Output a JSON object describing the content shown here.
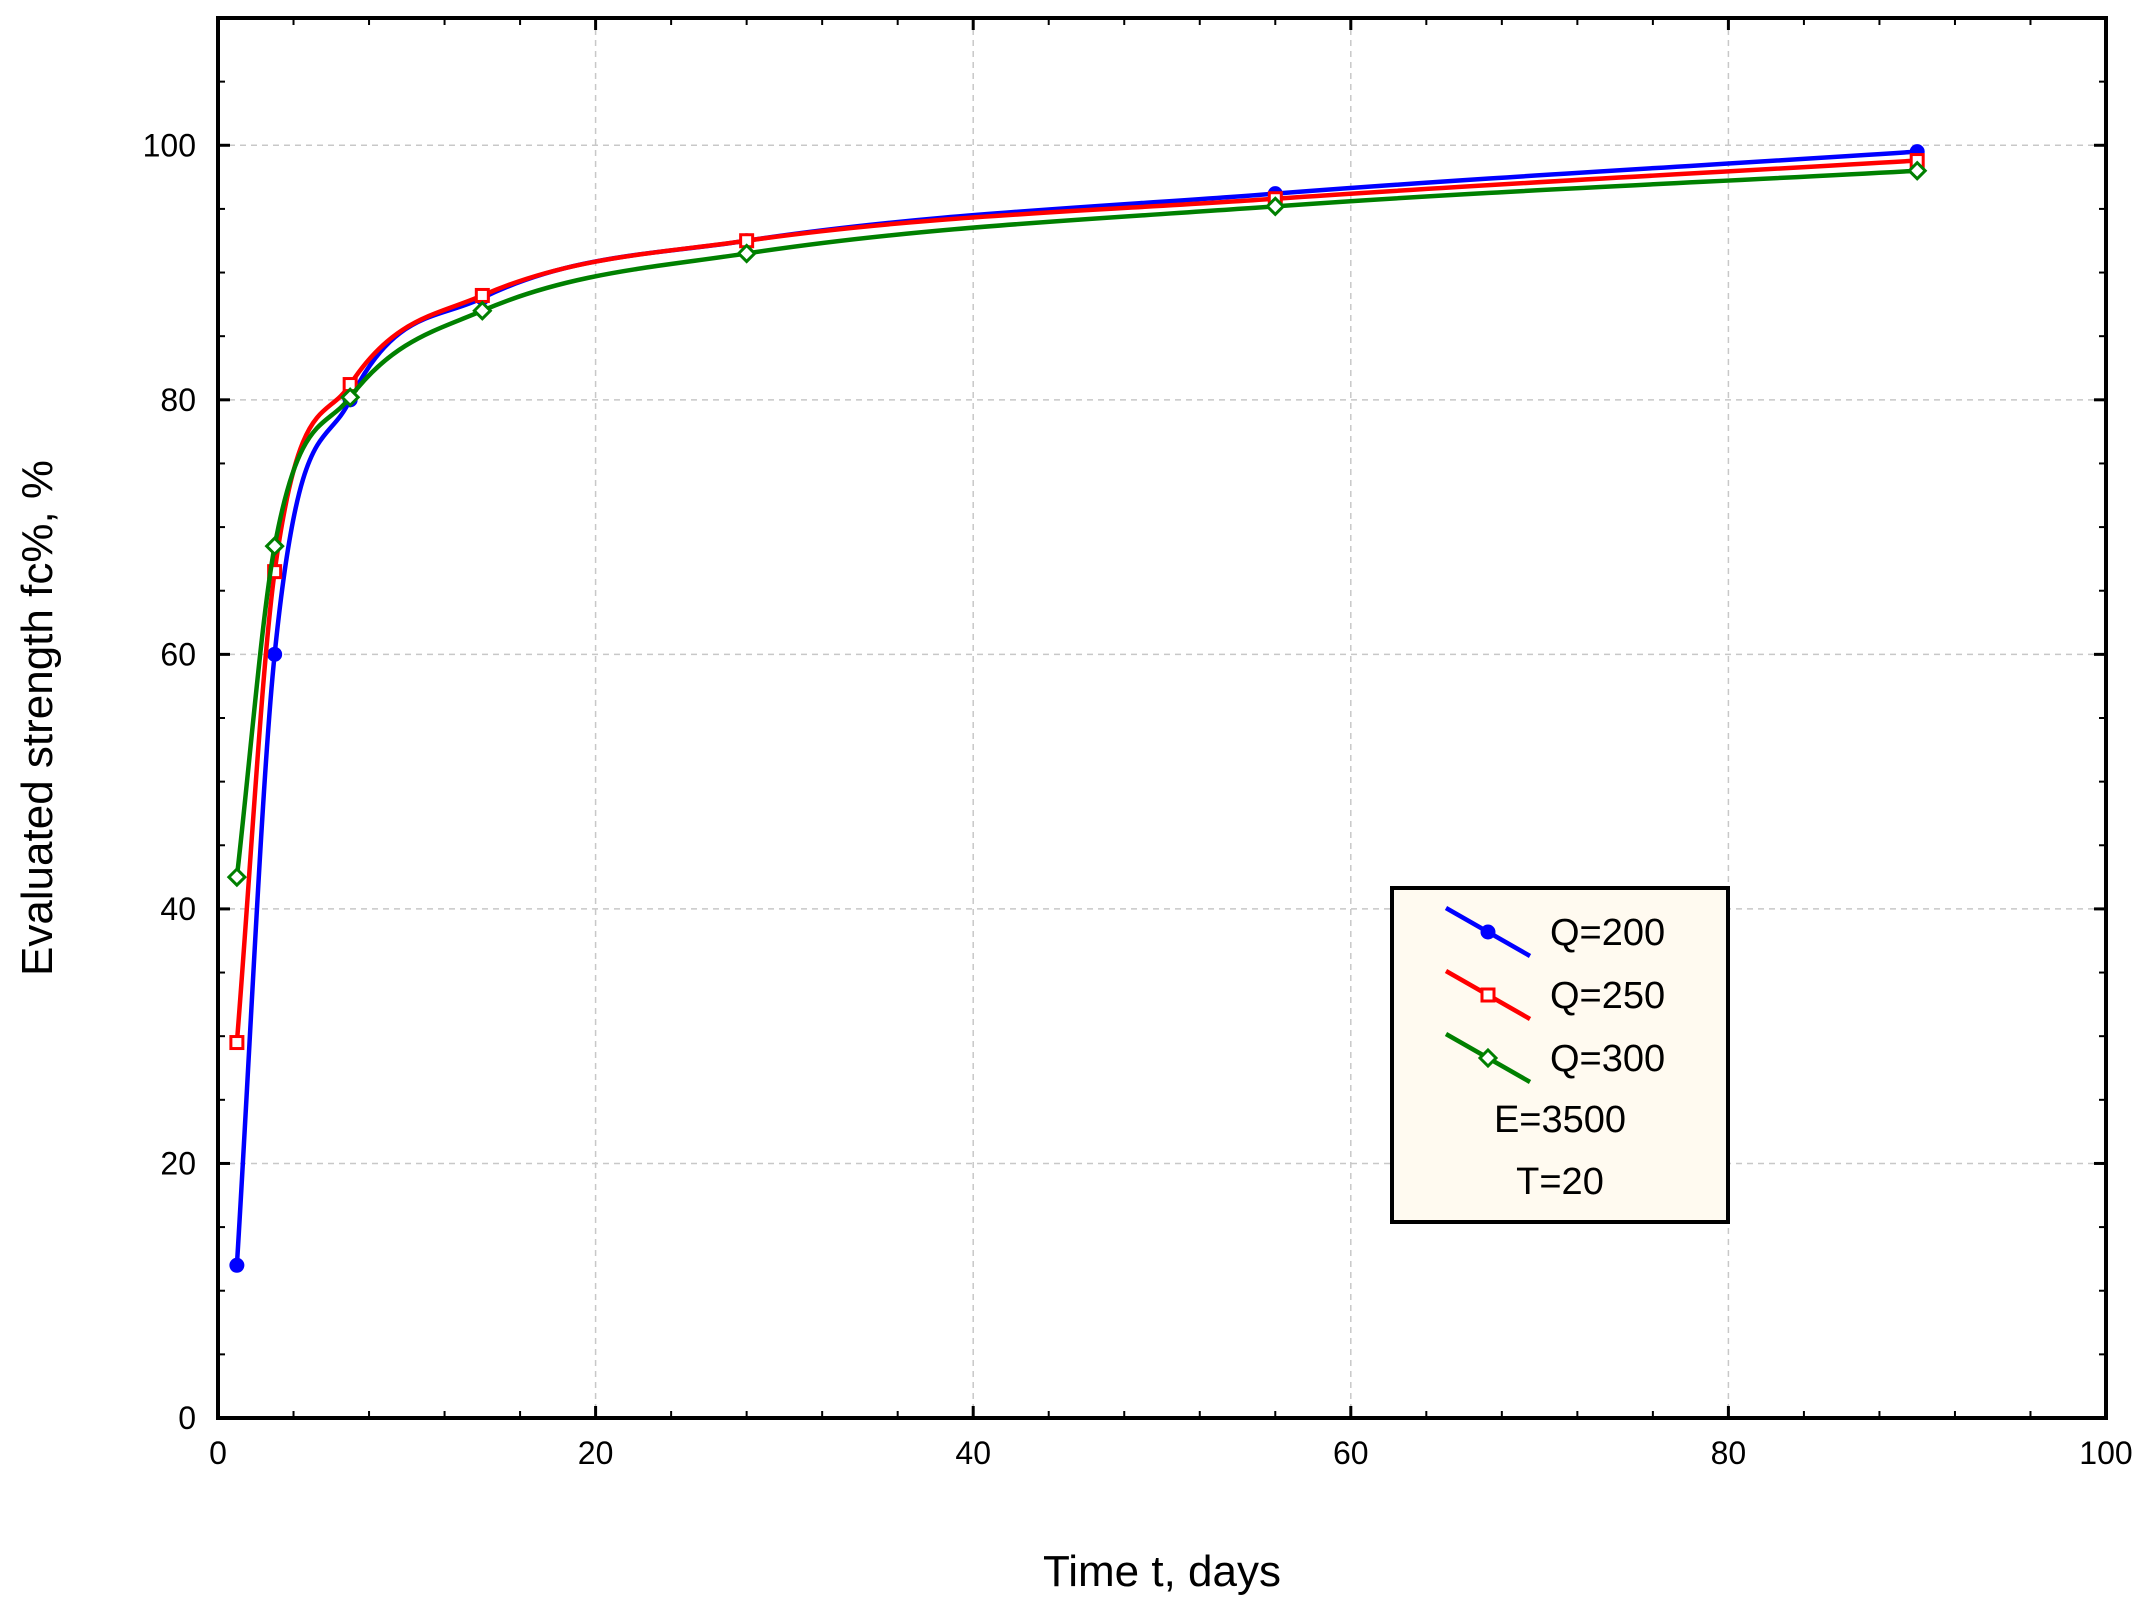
{
  "chart_data": {
    "type": "line",
    "xlabel": "Time t, days",
    "ylabel": "Evaluated strength fc%,  %",
    "xlim": [
      0,
      100
    ],
    "ylim": [
      0,
      110
    ],
    "xticks": [
      0,
      20,
      40,
      60,
      80,
      100
    ],
    "yticks": [
      0,
      20,
      40,
      60,
      80,
      100
    ],
    "grid": true,
    "legend_position": "lower-right",
    "series": [
      {
        "name": "Q=200",
        "color": "#0000ff",
        "marker": "filled-circle",
        "x": [
          1,
          3,
          7,
          14,
          28,
          56,
          90
        ],
        "y": [
          12,
          60,
          80,
          88,
          92.5,
          96.2,
          99.5
        ]
      },
      {
        "name": "Q=250",
        "color": "#ff0000",
        "marker": "open-square",
        "x": [
          1,
          3,
          7,
          14,
          28,
          56,
          90
        ],
        "y": [
          29.5,
          66.5,
          81.2,
          88.2,
          92.5,
          95.8,
          98.8
        ]
      },
      {
        "name": "Q=300",
        "color": "#008000",
        "marker": "open-diamond",
        "x": [
          1,
          3,
          7,
          14,
          28,
          56,
          90
        ],
        "y": [
          42.5,
          68.5,
          80.2,
          87,
          91.5,
          95.2,
          98
        ]
      }
    ],
    "legend_notes": [
      "E=3500",
      "T=20"
    ]
  }
}
